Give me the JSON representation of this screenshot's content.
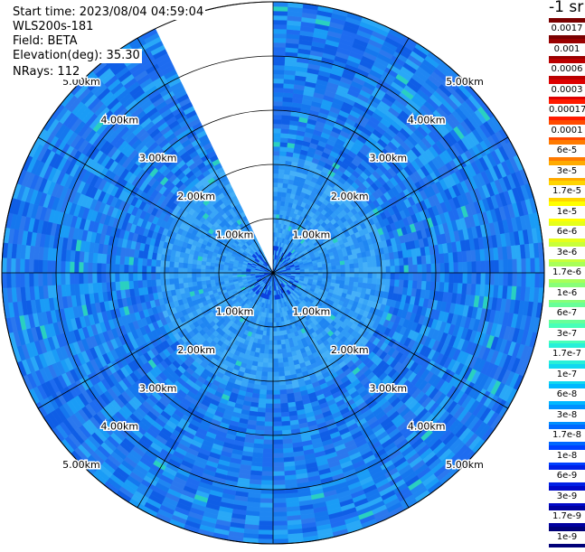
{
  "header": {
    "start_time": "Start time: 2023/08/04 04:59:04",
    "instrument": "WLS200s-181",
    "field": "Field: BETA",
    "elevation": "Elevation(deg): 35.30",
    "nrays": "NRays: 112"
  },
  "colorbar": {
    "unit_label": "-1 sr",
    "ticks": [
      "0.0017",
      "0.001",
      "0.0006",
      "0.0003",
      "0.00017",
      "0.0001",
      "6e-5",
      "3e-5",
      "1.7e-5",
      "1e-5",
      "6e-6",
      "3e-6",
      "1.7e-6",
      "1e-6",
      "6e-7",
      "3e-7",
      "1.7e-7",
      "1e-7",
      "6e-8",
      "3e-8",
      "1.7e-8",
      "1e-8",
      "6e-9",
      "3e-9",
      "1.7e-9",
      "1e-9"
    ],
    "colors": [
      "#7a0000",
      "#9a0000",
      "#bb0000",
      "#dd0000",
      "#ff1a00",
      "#ff4a00",
      "#ff7a00",
      "#ffaa00",
      "#ffd400",
      "#ffff00",
      "#e6ff1a",
      "#c8ff3a",
      "#a8ff58",
      "#88ff78",
      "#68ff98",
      "#48ffb8",
      "#28f0d8",
      "#10d8f0",
      "#00b8ff",
      "#0090ff",
      "#0068ff",
      "#0040ff",
      "#0020e6",
      "#0008c8",
      "#0000a0",
      "#000078"
    ]
  },
  "chart_data": {
    "type": "polar-ppi",
    "field": "BETA",
    "range_unit": "km",
    "range_rings_km": [
      1,
      2,
      3,
      4,
      5
    ],
    "ring_labels": [
      "1.00km",
      "2.00km",
      "3.00km",
      "4.00km",
      "5.00km"
    ],
    "max_range_km": 5.0,
    "azimuth_grid_deg": [
      0,
      30,
      60,
      90,
      120,
      150,
      180,
      210,
      240,
      270,
      300,
      330
    ],
    "data_gap_azimuth_deg": [
      334,
      360
    ],
    "dominant_value_range": [
      "3e-8",
      "1.7e-8"
    ],
    "near_range_value_range": [
      "6e-8",
      "3e-8"
    ],
    "colorbar_min": "1e-9",
    "colorbar_max": "0.0017"
  }
}
